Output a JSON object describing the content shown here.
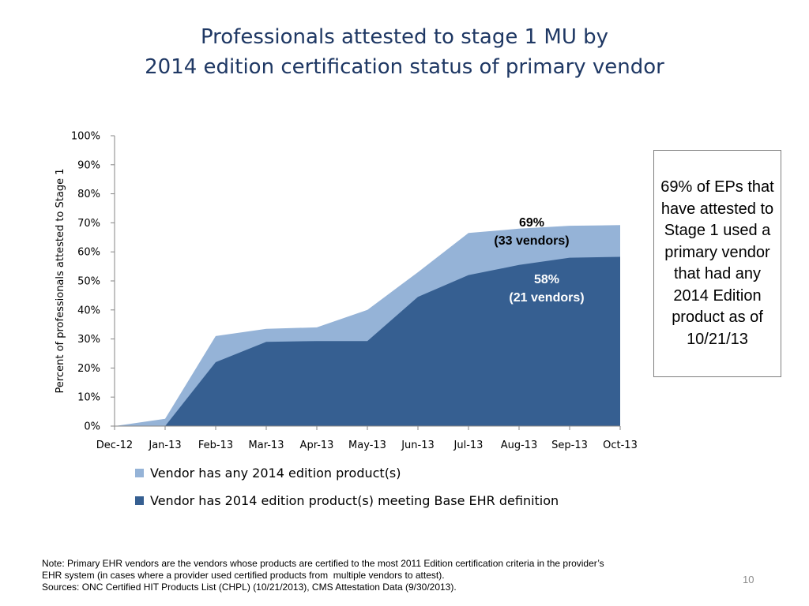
{
  "title": {
    "line1": "Professionals attested to stage 1 MU by",
    "line2": "2014 edition certification status of primary vendor"
  },
  "chart_data": {
    "type": "area",
    "x": [
      "Dec-12",
      "Jan-13",
      "Feb-13",
      "Mar-13",
      "Apr-13",
      "May-13",
      "Jun-13",
      "Jul-13",
      "Aug-13",
      "Sep-13",
      "Oct-13"
    ],
    "ylabel": "Percent of professionals attested to Stage 1",
    "xlabel": "",
    "ylim": [
      0,
      100
    ],
    "yticks": [
      "0%",
      "10%",
      "20%",
      "30%",
      "40%",
      "50%",
      "60%",
      "70%",
      "80%",
      "90%",
      "100%"
    ],
    "series": [
      {
        "name": "Vendor has any 2014 edition product(s)",
        "color": "#95b3d7",
        "values": [
          0,
          2.5,
          31,
          33.5,
          34,
          40,
          53,
          66.5,
          68,
          69,
          69.2
        ]
      },
      {
        "name": "Vendor has 2014 edition product(s) meeting Base EHR definition",
        "color": "#365f91",
        "values": [
          0,
          0,
          22,
          29,
          29.3,
          29.3,
          44.5,
          52,
          55.5,
          58,
          58.3
        ]
      }
    ],
    "annotations": [
      {
        "lines": [
          "69%",
          "(33 vendors)"
        ],
        "color": "#000000"
      },
      {
        "lines": [
          "58%",
          "(21 vendors)"
        ],
        "color": "#ffffff"
      }
    ],
    "legend_position": "bottom",
    "grid": false
  },
  "callout": {
    "text": "69% of EPs that have attested to Stage 1 used a primary vendor that had any 2014 Edition product as of 10/21/13"
  },
  "note": {
    "line1": "Note: Primary EHR vendors are the vendors whose products are certified to the most 2011 Edition certification criteria in the provider’s",
    "line2": "EHR system (in cases where a provider used certified products from  multiple vendors to attest).",
    "line3": "Sources: ONC Certified HIT Products List (CHPL) (10/21/2013), CMS Attestation Data (9/30/2013)."
  },
  "page_number": "10"
}
